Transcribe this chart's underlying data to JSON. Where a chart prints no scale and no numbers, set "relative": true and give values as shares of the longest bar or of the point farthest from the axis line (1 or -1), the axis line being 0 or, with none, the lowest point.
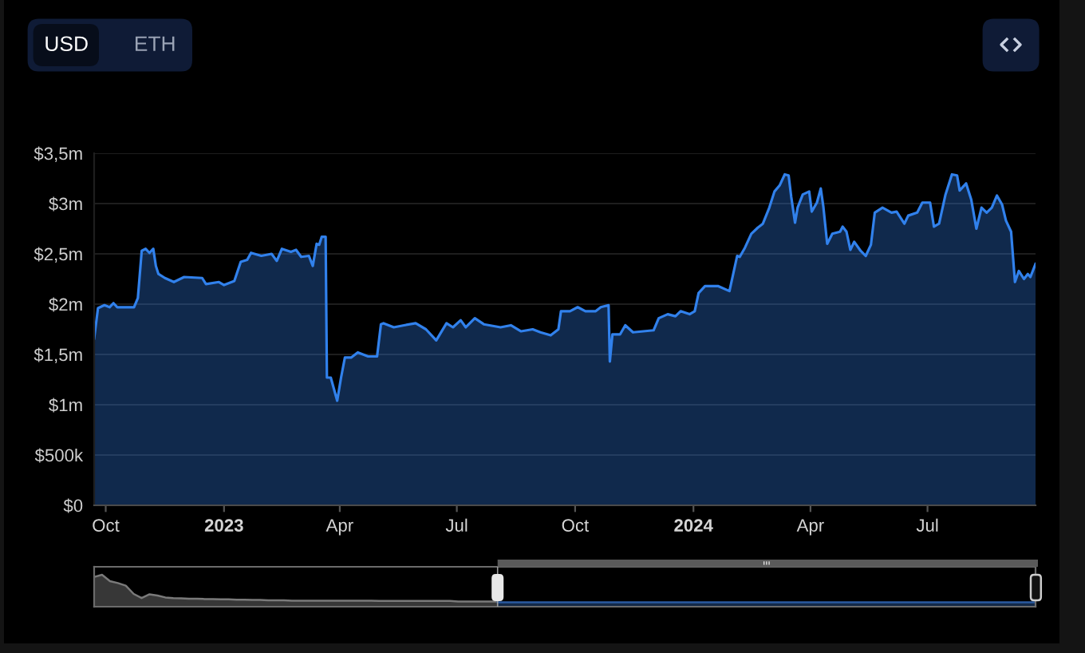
{
  "chart_data": [
    {
      "type": "area",
      "x": [
        "2022-09-22",
        "2022-09-25",
        "2022-09-30",
        "2022-10-04",
        "2022-10-07",
        "2022-10-10",
        "2022-10-23",
        "2022-10-26",
        "2022-10-29",
        "2022-11-01",
        "2022-11-04",
        "2022-11-07",
        "2022-11-09",
        "2022-11-11",
        "2022-11-16",
        "2022-11-23",
        "2022-12-01",
        "2022-12-15",
        "2022-12-18",
        "2022-12-28",
        "2023-01-01",
        "2023-01-09",
        "2023-01-14",
        "2023-01-19",
        "2023-01-22",
        "2023-01-30",
        "2023-02-07",
        "2023-02-11",
        "2023-02-15",
        "2023-02-22",
        "2023-02-26",
        "2023-03-02",
        "2023-03-08",
        "2023-03-11",
        "2023-03-14",
        "2023-03-16",
        "2023-03-18",
        "2023-03-21",
        "2023-03-22",
        "2023-03-25",
        "2023-03-30",
        "2023-04-02",
        "2023-04-05",
        "2023-04-10",
        "2023-04-15",
        "2023-04-23",
        "2023-04-30",
        "2023-05-03",
        "2023-05-05",
        "2023-05-13",
        "2023-05-21",
        "2023-05-30",
        "2023-06-07",
        "2023-06-15",
        "2023-06-23",
        "2023-06-28",
        "2023-07-04",
        "2023-07-08",
        "2023-07-15",
        "2023-07-22",
        "2023-08-04",
        "2023-08-12",
        "2023-08-20",
        "2023-08-29",
        "2023-09-04",
        "2023-09-12",
        "2023-09-18",
        "2023-09-20",
        "2023-09-27",
        "2023-10-03",
        "2023-10-09",
        "2023-10-17",
        "2023-10-21",
        "2023-10-27",
        "2023-10-28",
        "2023-10-30",
        "2023-11-05",
        "2023-11-09",
        "2023-11-15",
        "2023-11-23",
        "2023-12-01",
        "2023-12-05",
        "2023-12-12",
        "2023-12-18",
        "2023-12-22",
        "2023-12-29",
        "2024-01-02",
        "2024-01-05",
        "2024-01-10",
        "2024-01-20",
        "2024-01-29",
        "2024-02-04",
        "2024-02-06",
        "2024-02-10",
        "2024-02-15",
        "2024-02-20",
        "2024-02-24",
        "2024-02-29",
        "2024-03-04",
        "2024-03-08",
        "2024-03-12",
        "2024-03-15",
        "2024-03-17",
        "2024-03-20",
        "2024-03-22",
        "2024-03-26",
        "2024-03-31",
        "2024-04-02",
        "2024-04-06",
        "2024-04-09",
        "2024-04-11",
        "2024-04-14",
        "2024-04-18",
        "2024-04-24",
        "2024-04-26",
        "2024-04-29",
        "2024-05-02",
        "2024-05-05",
        "2024-05-10",
        "2024-05-14",
        "2024-05-18",
        "2024-05-21",
        "2024-05-27",
        "2024-06-03",
        "2024-06-07",
        "2024-06-13",
        "2024-06-16",
        "2024-06-23",
        "2024-06-27",
        "2024-07-03",
        "2024-07-06",
        "2024-07-10",
        "2024-07-15",
        "2024-07-20",
        "2024-07-24",
        "2024-07-26",
        "2024-07-31",
        "2024-08-04",
        "2024-08-08",
        "2024-08-12",
        "2024-08-16",
        "2024-08-20",
        "2024-08-24",
        "2024-08-28",
        "2024-08-31",
        "2024-09-04",
        "2024-09-07",
        "2024-09-10",
        "2024-09-14",
        "2024-09-17",
        "2024-09-19",
        "2024-09-23"
      ],
      "series": [
        {
          "color": "#3181ec",
          "values": [
            1660000,
            1960000,
            1990000,
            1970000,
            2010000,
            1970000,
            1970000,
            2060000,
            2530000,
            2550000,
            2510000,
            2550000,
            2380000,
            2300000,
            2260000,
            2220000,
            2270000,
            2260000,
            2200000,
            2220000,
            2190000,
            2230000,
            2420000,
            2440000,
            2510000,
            2480000,
            2500000,
            2430000,
            2550000,
            2520000,
            2540000,
            2470000,
            2480000,
            2380000,
            2600000,
            2590000,
            2670000,
            2670000,
            1270000,
            1270000,
            1040000,
            1270000,
            1470000,
            1470000,
            1520000,
            1480000,
            1480000,
            1800000,
            1810000,
            1770000,
            1790000,
            1810000,
            1750000,
            1640000,
            1810000,
            1770000,
            1840000,
            1770000,
            1860000,
            1800000,
            1770000,
            1790000,
            1730000,
            1750000,
            1720000,
            1690000,
            1750000,
            1930000,
            1930000,
            1970000,
            1930000,
            1930000,
            1970000,
            1990000,
            1430000,
            1700000,
            1700000,
            1790000,
            1720000,
            1730000,
            1740000,
            1860000,
            1900000,
            1880000,
            1930000,
            1900000,
            1930000,
            2110000,
            2180000,
            2180000,
            2130000,
            2480000,
            2470000,
            2560000,
            2700000,
            2760000,
            2800000,
            2960000,
            3120000,
            3180000,
            3290000,
            3280000,
            3070000,
            2810000,
            2960000,
            3090000,
            3120000,
            2920000,
            3010000,
            3150000,
            2970000,
            2600000,
            2700000,
            2720000,
            2770000,
            2720000,
            2540000,
            2620000,
            2530000,
            2480000,
            2590000,
            2910000,
            2960000,
            2910000,
            2920000,
            2800000,
            2880000,
            2910000,
            3010000,
            3010000,
            2770000,
            2800000,
            3090000,
            3290000,
            3280000,
            3130000,
            3200000,
            3040000,
            2750000,
            2960000,
            2910000,
            2960000,
            3080000,
            2990000,
            2830000,
            2720000,
            2220000,
            2330000,
            2250000,
            2300000,
            2270000,
            2400000
          ]
        }
      ],
      "xlim": [
        "2022-09-22",
        "2024-09-23"
      ],
      "xticks": [
        {
          "value": "2022-10-01",
          "label": "Oct"
        },
        {
          "value": "2023-01-01",
          "label": "2023"
        },
        {
          "value": "2023-04-01",
          "label": "Apr"
        },
        {
          "value": "2023-07-01",
          "label": "Jul"
        },
        {
          "value": "2023-10-01",
          "label": "Oct"
        },
        {
          "value": "2024-01-01",
          "label": "2024"
        },
        {
          "value": "2024-04-01",
          "label": "Apr"
        },
        {
          "value": "2024-07-01",
          "label": "Jul"
        }
      ],
      "ylim": [
        0,
        3500000
      ],
      "yticks": [
        {
          "value": 0,
          "label": "$0"
        },
        {
          "value": 500000,
          "label": "$500k"
        },
        {
          "value": 1000000,
          "label": "$1m"
        },
        {
          "value": 1500000,
          "label": "$1,5m"
        },
        {
          "value": 2000000,
          "label": "$2m"
        },
        {
          "value": 2500000,
          "label": "$2,5m"
        },
        {
          "value": 3000000,
          "label": "$3m"
        },
        {
          "value": 3500000,
          "label": "$3,5m"
        }
      ],
      "grid": "y",
      "annotations": [
        "USD",
        "ETH"
      ]
    },
    {
      "type": "area",
      "relative": true,
      "categories": [
        null,
        null,
        null,
        null,
        null,
        null,
        null,
        null,
        null,
        null,
        null,
        null,
        null,
        null,
        null,
        null,
        null,
        null,
        null,
        null,
        null,
        null,
        null,
        null,
        null,
        null,
        null,
        null,
        null,
        null,
        null,
        null,
        null,
        null,
        null,
        null,
        null,
        null,
        null,
        null,
        null,
        null,
        null,
        null,
        null,
        null,
        null,
        null,
        null,
        null,
        null,
        null,
        null,
        null,
        null,
        null,
        null,
        null,
        null,
        null,
        null,
        null,
        null,
        null,
        null,
        null,
        null,
        null,
        null,
        null,
        null,
        null,
        null,
        null,
        null,
        null,
        null,
        null,
        null,
        null,
        null,
        null,
        null,
        null,
        null,
        null,
        null,
        null,
        null,
        null,
        null,
        null,
        null,
        null,
        null,
        null,
        null,
        null,
        null,
        null,
        null,
        null,
        null,
        null,
        null,
        null,
        null,
        null,
        null,
        null,
        null,
        null,
        null,
        null,
        null,
        null,
        null,
        null,
        null,
        null
      ],
      "series": [
        {
          "color": "#7a7a7a",
          "values": [
            0.93,
            1,
            0.8,
            0.74,
            0.66,
            0.4,
            0.27,
            0.39,
            0.35,
            0.29,
            0.27,
            0.26,
            0.25,
            0.25,
            0.24,
            0.24,
            0.23,
            0.23,
            0.22,
            0.22,
            0.21,
            0.21,
            0.2,
            0.2,
            0.2,
            0.19,
            0.19,
            0.19,
            0.19,
            0.19,
            0.19,
            0.19,
            0.19,
            0.19,
            0.19,
            0.19,
            0.18,
            0.18,
            0.18,
            0.18,
            0.18,
            0.18,
            0.18,
            0.18,
            0.18,
            0.18,
            0.16,
            0.16,
            0.16,
            0.16,
            0.16,
            0.16,
            null,
            null,
            null,
            null,
            null,
            null,
            null,
            null,
            null,
            null,
            null,
            null,
            null,
            null,
            null,
            null,
            null,
            null,
            null,
            null,
            null,
            null,
            null,
            null,
            null,
            null,
            null,
            null,
            null,
            null,
            null,
            null,
            null,
            null,
            null,
            null,
            null,
            null,
            null,
            null,
            null,
            null,
            null,
            null,
            null,
            null,
            null,
            null,
            null,
            null,
            null,
            null,
            null,
            null,
            null,
            null,
            null,
            null,
            null,
            null,
            null,
            null,
            null,
            null,
            null,
            null,
            null,
            null
          ]
        },
        {
          "color": "#2a5aa0",
          "values": [
            null,
            null,
            null,
            null,
            null,
            null,
            null,
            null,
            null,
            null,
            null,
            null,
            null,
            null,
            null,
            null,
            null,
            null,
            null,
            null,
            null,
            null,
            null,
            null,
            null,
            null,
            null,
            null,
            null,
            null,
            null,
            null,
            null,
            null,
            null,
            null,
            null,
            null,
            null,
            null,
            null,
            null,
            null,
            null,
            null,
            null,
            null,
            null,
            null,
            null,
            null,
            0.14,
            0.14,
            0.14,
            0.14,
            0.14,
            0.14,
            0.14,
            0.14,
            0.14,
            0.14,
            0.14,
            0.14,
            0.14,
            0.14,
            0.14,
            0.14,
            0.14,
            0.14,
            0.14,
            0.14,
            0.14,
            0.14,
            0.14,
            0.14,
            0.14,
            0.14,
            0.14,
            0.14,
            0.14,
            0.14,
            0.14,
            0.14,
            0.14,
            0.14,
            0.14,
            0.14,
            0.14,
            0.14,
            0.14,
            0.14,
            0.14,
            0.14,
            0.14,
            0.14,
            0.14,
            0.14,
            0.14,
            0.14,
            0.14,
            0.14,
            0.14,
            0.14,
            0.14,
            0.14,
            0.14,
            0.14,
            0.14,
            0.14,
            0.14,
            0.14,
            0.14,
            0.14,
            0.14,
            0.14,
            0.14,
            0.14,
            0.14,
            0.14,
            0.14
          ]
        }
      ]
    }
  ]
}
